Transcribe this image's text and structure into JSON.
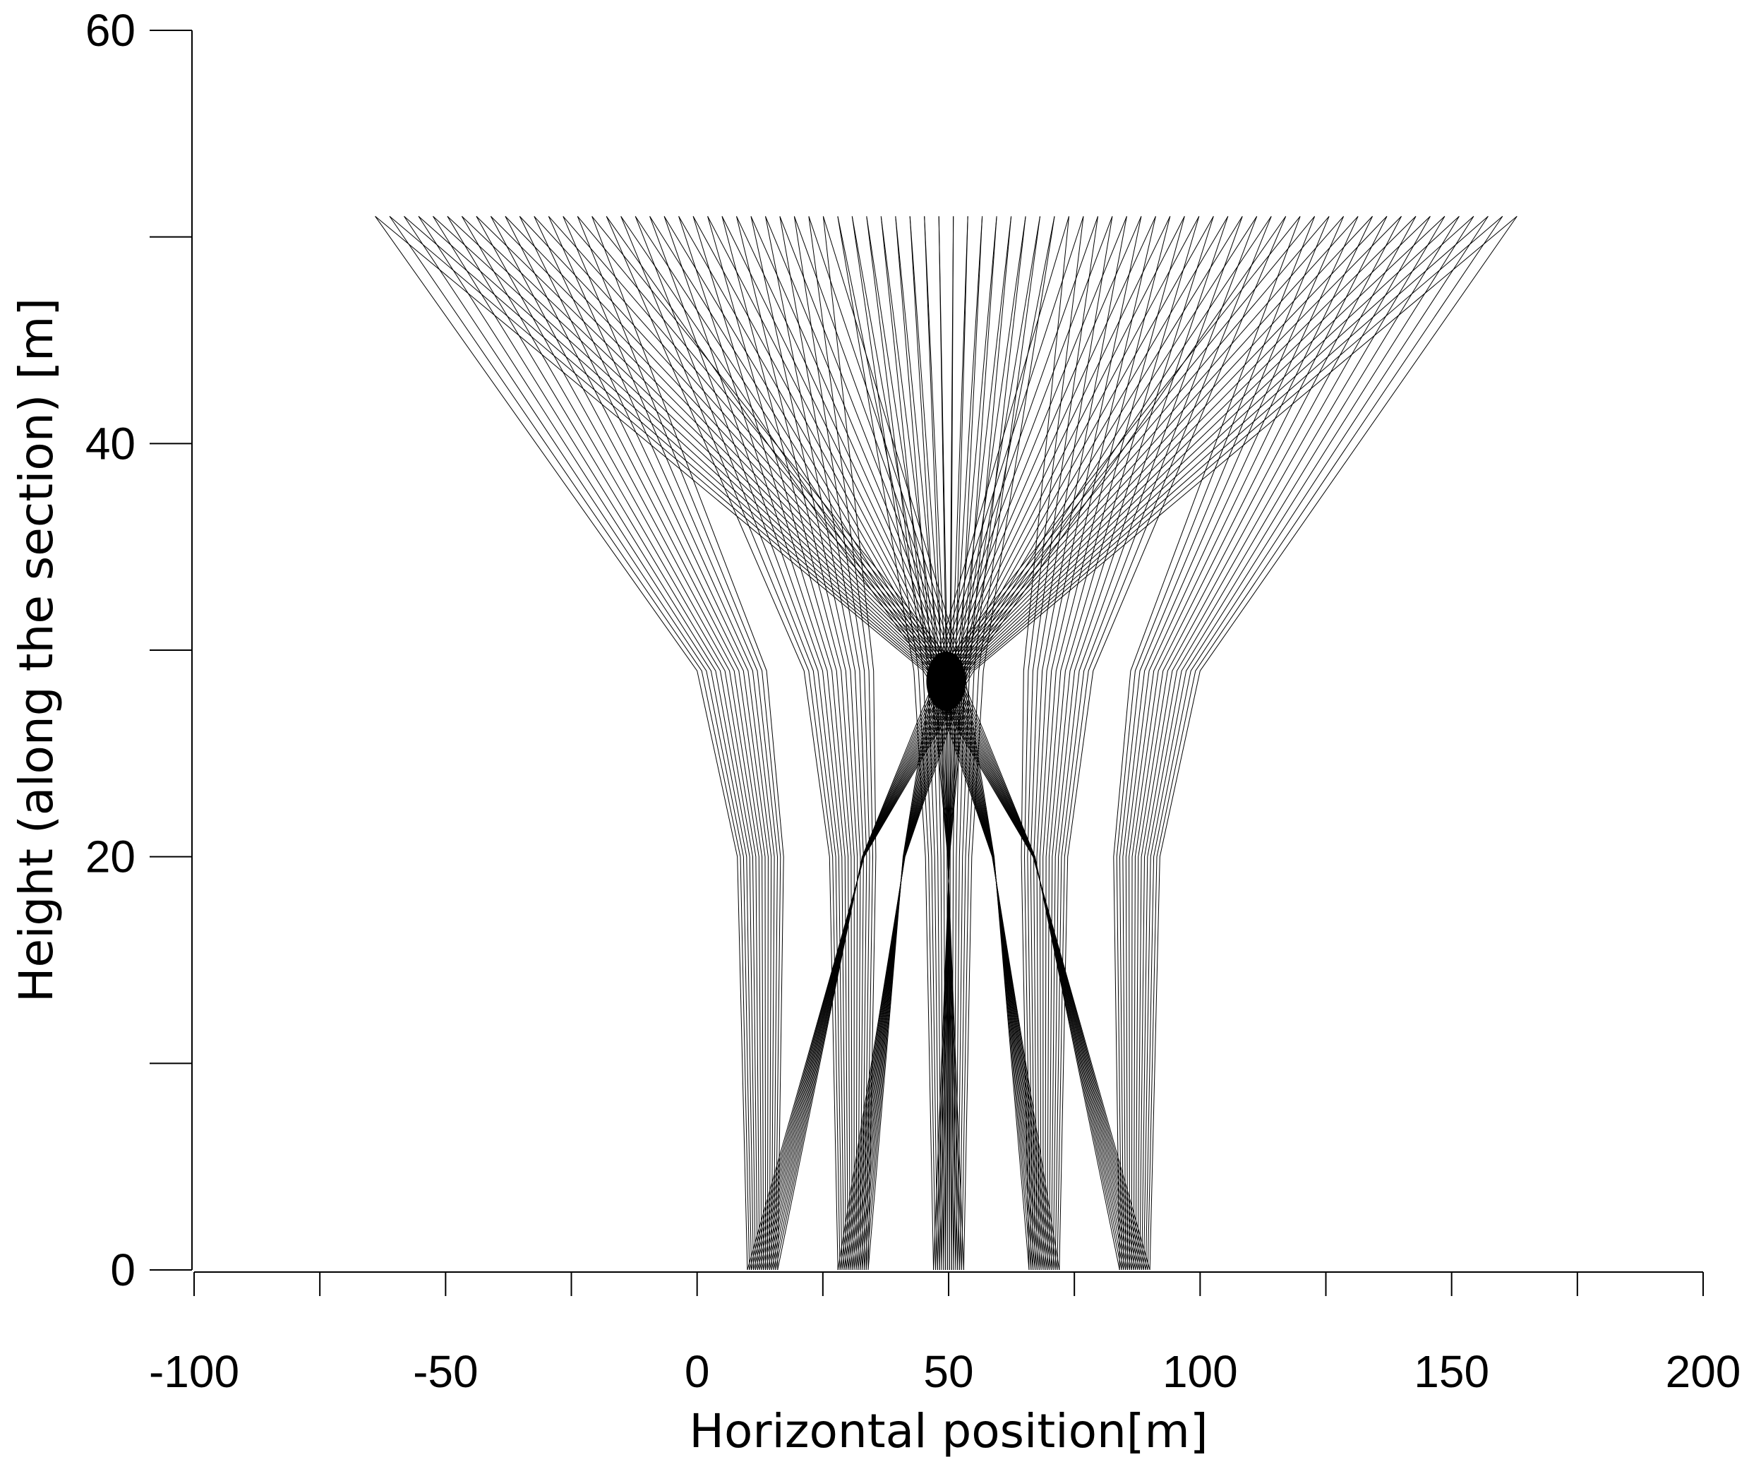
{
  "chart_data": {
    "type": "line",
    "title": "",
    "xlabel": "Horizontal position[m]",
    "ylabel": "Height (along the section) [m]",
    "xlim": [
      -100,
      200
    ],
    "ylim": [
      0,
      60
    ],
    "x_ticks": [
      -100,
      -75,
      -50,
      -25,
      0,
      25,
      50,
      75,
      100,
      125,
      150,
      175,
      200
    ],
    "x_tick_labels": [
      "-100",
      "-50",
      "0",
      "50",
      "100",
      "150",
      "200"
    ],
    "y_ticks": [
      0,
      10,
      20,
      30,
      40,
      50,
      60
    ],
    "y_tick_labels": [
      "0",
      "20",
      "40",
      "60"
    ],
    "grid": false,
    "legend": "none",
    "target": {
      "x": 49.5,
      "y": 28.5,
      "rx": 4,
      "ry": 1.5
    },
    "series": [
      {
        "source_segments": [
          [
            10,
            16
          ],
          [
            28,
            34
          ],
          [
            47,
            53
          ],
          [
            66,
            72
          ],
          [
            84,
            90
          ]
        ],
        "rays_per_segment": 16,
        "top_x_range": [
          -64,
          163
        ],
        "top_height": 51,
        "profile": [
          {
            "height": 0,
            "left": 10,
            "right": 90
          },
          {
            "height": 20,
            "left": 8,
            "right": 92
          },
          {
            "height": 29,
            "left": 0,
            "right": 100
          },
          {
            "height": 51,
            "left": -64,
            "right": 163
          }
        ]
      }
    ]
  },
  "colors": {
    "rays": "#000000",
    "target": "#000000",
    "axis": "#000000"
  }
}
